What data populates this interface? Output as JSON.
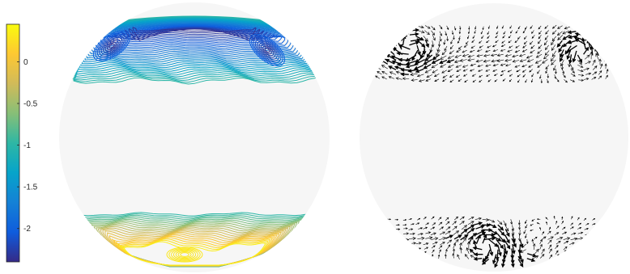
{
  "chart_data": [
    {
      "type": "colorbar",
      "colormap": "parula",
      "range": [
        -2.4,
        0.45
      ],
      "ticks": [
        0,
        -0.5,
        -1,
        -1.5,
        -2
      ],
      "tick_labels": [
        "0",
        "-0.5",
        "-1",
        "-1.5",
        "-2"
      ],
      "colors": [
        "#352a87",
        "#0f5cdd",
        "#1481d6",
        "#06a4ca",
        "#2eb7a4",
        "#87bf77",
        "#d1bb59",
        "#fec832",
        "#f9fb0e"
      ]
    },
    {
      "type": "contour",
      "projection": "sphere",
      "levels_north": 30,
      "levels_south": 22,
      "background": "#f6f6f6"
    },
    {
      "type": "quiver",
      "projection": "sphere",
      "background": "#f6f6f6",
      "arrow_color": "#000000"
    }
  ]
}
